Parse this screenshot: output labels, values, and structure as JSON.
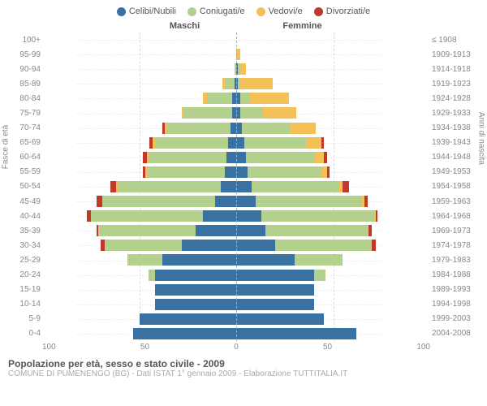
{
  "legend": [
    {
      "label": "Celibi/Nubili",
      "color": "#3a71a3"
    },
    {
      "label": "Coniugati/e",
      "color": "#b3d18c"
    },
    {
      "label": "Vedovi/e",
      "color": "#f4c158"
    },
    {
      "label": "Divorziati/e",
      "color": "#c0392b"
    }
  ],
  "header_left": "Maschi",
  "header_right": "Femmine",
  "yaxis_left": "Fasce di età",
  "yaxis_right": "Anni di nascita",
  "xmax": 100,
  "xticks": [
    "100",
    "50",
    "0",
    "50",
    "100"
  ],
  "title": "Popolazione per età, sesso e stato civile - 2009",
  "subtitle": "COMUNE DI PUMENENGO (BG) - Dati ISTAT 1° gennaio 2009 - Elaborazione TUTTITALIA.IT",
  "rows": [
    {
      "age": "100+",
      "year": "≤ 1908",
      "m": [
        0,
        0,
        0,
        0
      ],
      "f": [
        0,
        0,
        0,
        0
      ]
    },
    {
      "age": "95-99",
      "year": "1909-1913",
      "m": [
        0,
        0,
        0,
        0
      ],
      "f": [
        0,
        0,
        2,
        0
      ]
    },
    {
      "age": "90-94",
      "year": "1914-1918",
      "m": [
        0,
        1,
        0,
        0
      ],
      "f": [
        1,
        1,
        3,
        0
      ]
    },
    {
      "age": "85-89",
      "year": "1919-1923",
      "m": [
        1,
        5,
        1,
        0
      ],
      "f": [
        1,
        1,
        17,
        0
      ]
    },
    {
      "age": "80-84",
      "year": "1924-1928",
      "m": [
        2,
        13,
        2,
        0
      ],
      "f": [
        2,
        5,
        20,
        0
      ]
    },
    {
      "age": "75-79",
      "year": "1929-1933",
      "m": [
        2,
        25,
        1,
        0
      ],
      "f": [
        2,
        12,
        17,
        0
      ]
    },
    {
      "age": "70-74",
      "year": "1934-1938",
      "m": [
        3,
        33,
        1,
        1
      ],
      "f": [
        3,
        25,
        13,
        0
      ]
    },
    {
      "age": "65-69",
      "year": "1939-1943",
      "m": [
        4,
        38,
        1,
        2
      ],
      "f": [
        4,
        32,
        8,
        1
      ]
    },
    {
      "age": "60-64",
      "year": "1944-1948",
      "m": [
        5,
        40,
        1,
        2
      ],
      "f": [
        5,
        35,
        5,
        2
      ]
    },
    {
      "age": "55-59",
      "year": "1949-1953",
      "m": [
        6,
        40,
        1,
        1
      ],
      "f": [
        6,
        38,
        3,
        1
      ]
    },
    {
      "age": "50-54",
      "year": "1954-1958",
      "m": [
        8,
        53,
        1,
        3
      ],
      "f": [
        8,
        45,
        2,
        3
      ]
    },
    {
      "age": "45-49",
      "year": "1959-1963",
      "m": [
        11,
        58,
        0,
        3
      ],
      "f": [
        10,
        55,
        1,
        2
      ]
    },
    {
      "age": "40-44",
      "year": "1964-1968",
      "m": [
        17,
        58,
        0,
        2
      ],
      "f": [
        13,
        58,
        1,
        1
      ]
    },
    {
      "age": "35-39",
      "year": "1969-1973",
      "m": [
        21,
        50,
        0,
        1
      ],
      "f": [
        15,
        53,
        0,
        2
      ]
    },
    {
      "age": "30-34",
      "year": "1974-1978",
      "m": [
        28,
        40,
        0,
        2
      ],
      "f": [
        20,
        50,
        0,
        2
      ]
    },
    {
      "age": "25-29",
      "year": "1979-1983",
      "m": [
        38,
        18,
        0,
        0
      ],
      "f": [
        30,
        25,
        0,
        0
      ]
    },
    {
      "age": "20-24",
      "year": "1984-1988",
      "m": [
        42,
        3,
        0,
        0
      ],
      "f": [
        40,
        6,
        0,
        0
      ]
    },
    {
      "age": "15-19",
      "year": "1989-1993",
      "m": [
        42,
        0,
        0,
        0
      ],
      "f": [
        40,
        0,
        0,
        0
      ]
    },
    {
      "age": "10-14",
      "year": "1994-1998",
      "m": [
        42,
        0,
        0,
        0
      ],
      "f": [
        40,
        0,
        0,
        0
      ]
    },
    {
      "age": "5-9",
      "year": "1999-2003",
      "m": [
        50,
        0,
        0,
        0
      ],
      "f": [
        45,
        0,
        0,
        0
      ]
    },
    {
      "age": "0-4",
      "year": "2004-2008",
      "m": [
        53,
        0,
        0,
        0
      ],
      "f": [
        62,
        0,
        0,
        0
      ]
    }
  ]
}
